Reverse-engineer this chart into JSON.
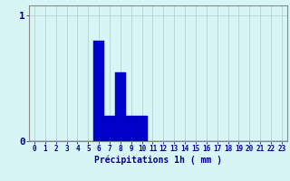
{
  "hours": [
    0,
    1,
    2,
    3,
    4,
    5,
    6,
    7,
    8,
    9,
    10,
    11,
    12,
    13,
    14,
    15,
    16,
    17,
    18,
    19,
    20,
    21,
    22,
    23
  ],
  "values": [
    0,
    0,
    0,
    0,
    0,
    0,
    0.8,
    0.2,
    0.55,
    0.2,
    0.2,
    0,
    0,
    0,
    0,
    0,
    0,
    0,
    0,
    0,
    0,
    0,
    0,
    0
  ],
  "bar_color": "#0000cc",
  "bar_edge_color": "#0000aa",
  "background_color": "#d8f5f5",
  "grid_color": "#b8d0d0",
  "axis_color": "#888888",
  "xlabel": "Précipitations 1h ( mm )",
  "xlabel_color": "#00008b",
  "tick_color": "#00008b",
  "ytick_labels": [
    "0",
    "1"
  ],
  "ytick_vals": [
    0,
    1
  ],
  "ylim": [
    0,
    1.08
  ],
  "xlim": [
    -0.5,
    23.5
  ],
  "tick_fontsize": 5.5,
  "xlabel_fontsize": 7.0
}
